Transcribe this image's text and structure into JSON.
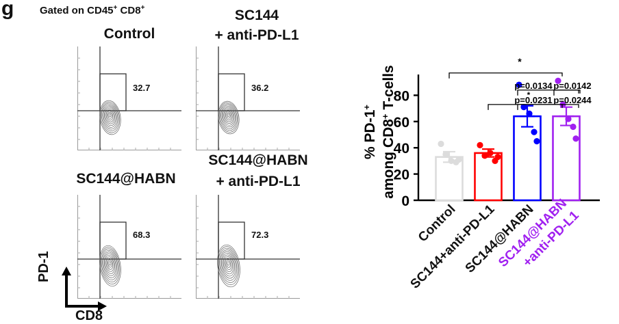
{
  "panel_label": "g",
  "gating": {
    "prefix": "Gated on CD45",
    "sup1": "+",
    "middle": " CD8",
    "sup2": "+"
  },
  "flow": {
    "panels": [
      {
        "title_lines": [
          "Control"
        ],
        "percent": "32.7"
      },
      {
        "title_lines": [
          "SC144",
          "+ anti-PD-L1"
        ],
        "percent": "36.2"
      },
      {
        "title_lines": [
          "SC144@HABN"
        ],
        "percent": "68.3"
      },
      {
        "title_lines": [
          "SC144@HABN",
          "+ anti-PD-L1"
        ],
        "percent": "72.3"
      }
    ],
    "y_axis_label": "PD-1",
    "x_axis_label": "CD8"
  },
  "chart_data": {
    "type": "bar",
    "categories": [
      "Control",
      "SC144+anti-PD-L1",
      "SC144@HABN",
      "SC144@HABN\n+anti-PD-L1"
    ],
    "category_lines": [
      [
        "Control"
      ],
      [
        "SC144+anti-PD-L1"
      ],
      [
        "SC144@HABN"
      ],
      [
        "SC144@HABN",
        "+anti-PD-L1"
      ]
    ],
    "values": [
      33,
      36,
      64,
      64
    ],
    "errors": [
      4,
      3,
      8,
      7
    ],
    "points": [
      [
        43,
        35,
        30,
        29,
        31
      ],
      [
        42,
        34,
        36,
        30,
        33
      ],
      [
        88,
        71,
        66,
        52,
        45
      ],
      [
        91,
        73,
        62,
        56,
        47
      ]
    ],
    "colors": [
      "#dcdcdc",
      "#ff0000",
      "#0000ff",
      "#a020f0"
    ],
    "label_colors": [
      "#111111",
      "#111111",
      "#111111",
      "#a020f0"
    ],
    "ylabel_line1": "% PD-1",
    "ylabel_line1_sup": "+",
    "ylabel_line2_prefix": "among CD8",
    "ylabel_line2_sup": "+",
    "ylabel_line2_suffix": " T-cells",
    "ylim": [
      0,
      100
    ],
    "yticks": [
      0,
      20,
      40,
      60,
      80
    ],
    "ytick_labels": [
      "0",
      "20",
      "40",
      "60",
      "80"
    ],
    "significance": [
      {
        "from": 0,
        "to": 3,
        "label": "*"
      },
      {
        "from": 2,
        "to": 3,
        "label": "p=0.0134"
      },
      {
        "from": 3,
        "to": 4,
        "label": "p=0.0142"
      },
      {
        "from": 1,
        "to": 3,
        "label": "p=0.0231"
      },
      {
        "from": 2,
        "to": 4,
        "label": "p=0.0244"
      }
    ],
    "star_label": "*"
  }
}
